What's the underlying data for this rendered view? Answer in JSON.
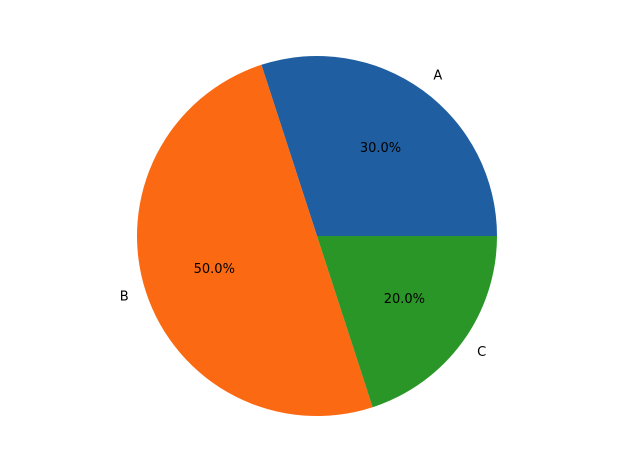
{
  "chart_data": {
    "type": "pie",
    "categories": [
      "A",
      "B",
      "C"
    ],
    "values": [
      30,
      50,
      20
    ],
    "value_labels": [
      "30.0%",
      "50.0%",
      "20.0%"
    ],
    "colors": [
      "#1f5fa1",
      "#fb6a12",
      "#2a9627"
    ]
  }
}
